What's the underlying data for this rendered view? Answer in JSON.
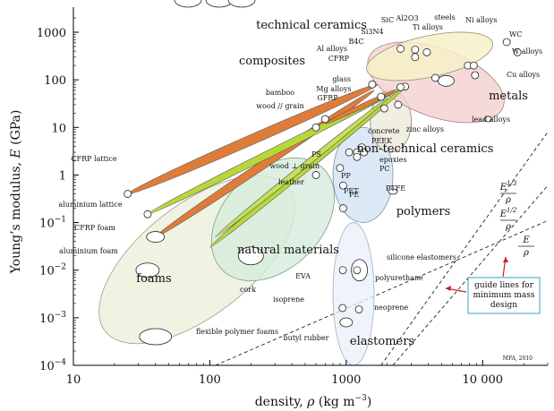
{
  "chart_data": {
    "type": "scatter",
    "chart_kind": "material property bubble chart (Ashby chart)",
    "scale": {
      "x": "log",
      "y": "log"
    },
    "xlim": [
      10,
      30000
    ],
    "ylim": [
      0.0001,
      2000
    ],
    "xlabel_prefix": "density, ",
    "xlabel_symbol": "ρ",
    "xlabel_unit": " (kg m",
    "xlabel_exp": "−3",
    "xlabel_close": ")",
    "ylabel_prefix": "Young’s modulus, ",
    "ylabel_symbol": "E",
    "ylabel_unit": " (GPa)",
    "x_ticks": [
      {
        "value": 10,
        "label": "10"
      },
      {
        "value": 100,
        "label": "100"
      },
      {
        "value": 1000,
        "label": "1000"
      },
      {
        "value": 10000,
        "label": "10 000"
      }
    ],
    "y_ticks": [
      {
        "value": 0.0001,
        "mant": "10",
        "exp": "−4"
      },
      {
        "value": 0.001,
        "mant": "10",
        "exp": "−3"
      },
      {
        "value": 0.01,
        "mant": "10",
        "exp": "−2"
      },
      {
        "value": 0.1,
        "mant": "10",
        "exp": "−1"
      },
      {
        "value": 1,
        "label": "1"
      },
      {
        "value": 10,
        "label": "10"
      },
      {
        "value": 100,
        "label": "100"
      },
      {
        "value": 1000,
        "label": "1000"
      }
    ],
    "families": [
      {
        "name": "technical ceramics",
        "color": "#f6f0c8",
        "stroke": "#999070",
        "x": [
          1800,
          17000
        ],
        "y": [
          120,
          1000
        ],
        "label": "technical ceramics"
      },
      {
        "name": "metals",
        "color": "#f4cfd0",
        "stroke": "#aa8080",
        "x": [
          1700,
          22000
        ],
        "y": [
          8,
          450
        ],
        "label": "metals"
      },
      {
        "name": "composites",
        "color": "#f0a878",
        "stroke": "#8a5030",
        "x": [
          1400,
          1900
        ],
        "y": [
          40,
          150
        ],
        "label": "composites"
      },
      {
        "name": "non-technical ceramics",
        "color": "#ece8d8",
        "stroke": "#888070",
        "x": [
          1500,
          3000
        ],
        "y": [
          3,
          60
        ],
        "label": "non-technical ceramics"
      },
      {
        "name": "polymers",
        "color": "#cfe0f2",
        "stroke": "#8090b0",
        "x": [
          800,
          2200
        ],
        "y": [
          0.1,
          10
        ],
        "label": "polymers"
      },
      {
        "name": "natural materials",
        "color": "#d6ecdc",
        "stroke": "#80a088",
        "x": [
          150,
          1500
        ],
        "y": [
          0.008,
          20
        ],
        "label": "natural materials"
      },
      {
        "name": "elastomers",
        "color": "#e8f0f8",
        "stroke": "#a0b0c0",
        "x": [
          800,
          1600
        ],
        "y": [
          0.0001,
          0.1
        ],
        "label": "elastomers"
      },
      {
        "name": "foams",
        "color": "#f0f2e2",
        "stroke": "#a0a080",
        "x": [
          18,
          400
        ],
        "y": [
          0.0003,
          0.8
        ],
        "label": "foams"
      }
    ],
    "materials": [
      {
        "name": "WC",
        "x": 15000,
        "y": 620
      },
      {
        "name": "W alloys",
        "x": 18000,
        "y": 380
      },
      {
        "name": "Cu alloys",
        "x": 8800,
        "y": 125
      },
      {
        "name": "lead alloys",
        "x": 11000,
        "y": 15
      },
      {
        "name": "zinc alloys",
        "x": 5400,
        "y": 95
      },
      {
        "name": "steels",
        "x": 7800,
        "y": 200
      },
      {
        "name": "Ni alloys",
        "x": 8600,
        "y": 200
      },
      {
        "name": "Ti alloys",
        "x": 4500,
        "y": 110
      },
      {
        "name": "Al2O3",
        "x": 3900,
        "y": 380
      },
      {
        "name": "SiC",
        "x": 3200,
        "y": 430
      },
      {
        "name": "Si3N4",
        "x": 3200,
        "y": 300
      },
      {
        "name": "B4C",
        "x": 2500,
        "y": 450
      },
      {
        "name": "Al alloys",
        "x": 2700,
        "y": 72
      },
      {
        "name": "CFRP",
        "x": 1550,
        "y": 80
      },
      {
        "name": "glass",
        "x": 2500,
        "y": 70
      },
      {
        "name": "Mg alloys",
        "x": 1800,
        "y": 44
      },
      {
        "name": "GFRP",
        "x": 1900,
        "y": 25
      },
      {
        "name": "concrete",
        "x": 2400,
        "y": 30
      },
      {
        "name": "PEEK",
        "x": 1300,
        "y": 3.8
      },
      {
        "name": "epoxies",
        "x": 1200,
        "y": 3
      },
      {
        "name": "PC",
        "x": 1200,
        "y": 2.4
      },
      {
        "name": "PS",
        "x": 1050,
        "y": 3
      },
      {
        "name": "PP",
        "x": 900,
        "y": 1.4
      },
      {
        "name": "PET",
        "x": 1350,
        "y": 3
      },
      {
        "name": "PE",
        "x": 950,
        "y": 0.6
      },
      {
        "name": "PTFE",
        "x": 2200,
        "y": 0.45
      },
      {
        "name": "bamboo",
        "x": 700,
        "y": 15
      },
      {
        "name": "wood // grain",
        "x": 600,
        "y": 10
      },
      {
        "name": "wood ⊥ grain",
        "x": 600,
        "y": 1
      },
      {
        "name": "leather",
        "x": 950,
        "y": 0.2
      },
      {
        "name": "cork",
        "x": 200,
        "y": 0.02
      },
      {
        "name": "silicone elastomers",
        "x": 1250,
        "y": 0.01
      },
      {
        "name": "polyurethane",
        "x": 1200,
        "y": 0.01
      },
      {
        "name": "EVA",
        "x": 945,
        "y": 0.01
      },
      {
        "name": "isoprene",
        "x": 940,
        "y": 0.0016
      },
      {
        "name": "neoprene",
        "x": 1240,
        "y": 0.0015
      },
      {
        "name": "butyl rubber",
        "x": 1000,
        "y": 0.0008
      },
      {
        "name": "CFRP lattice",
        "x": 25,
        "y": 0.4
      },
      {
        "name": "aluminium lattice",
        "x": 35,
        "y": 0.15
      },
      {
        "name": "CFRP foam",
        "x": 40,
        "y": 0.05
      },
      {
        "name": "aluminium foam",
        "x": 35,
        "y": 0.01
      },
      {
        "name": "flexible polymer foams",
        "x": 40,
        "y": 0.0004
      }
    ],
    "guide_lines": [
      {
        "label_num": "E",
        "label_exp": "1/3",
        "label_den": "ρ",
        "exponent": 3
      },
      {
        "label_num": "E",
        "label_exp": "1/2",
        "label_den": "ρ",
        "exponent": 2
      },
      {
        "label_num": "E",
        "label_exp": "",
        "label_den": "ρ",
        "exponent": 1
      }
    ],
    "guide_note": [
      "guide lines for",
      "minimum mass",
      "design"
    ],
    "credit": "MFA, 2010"
  }
}
